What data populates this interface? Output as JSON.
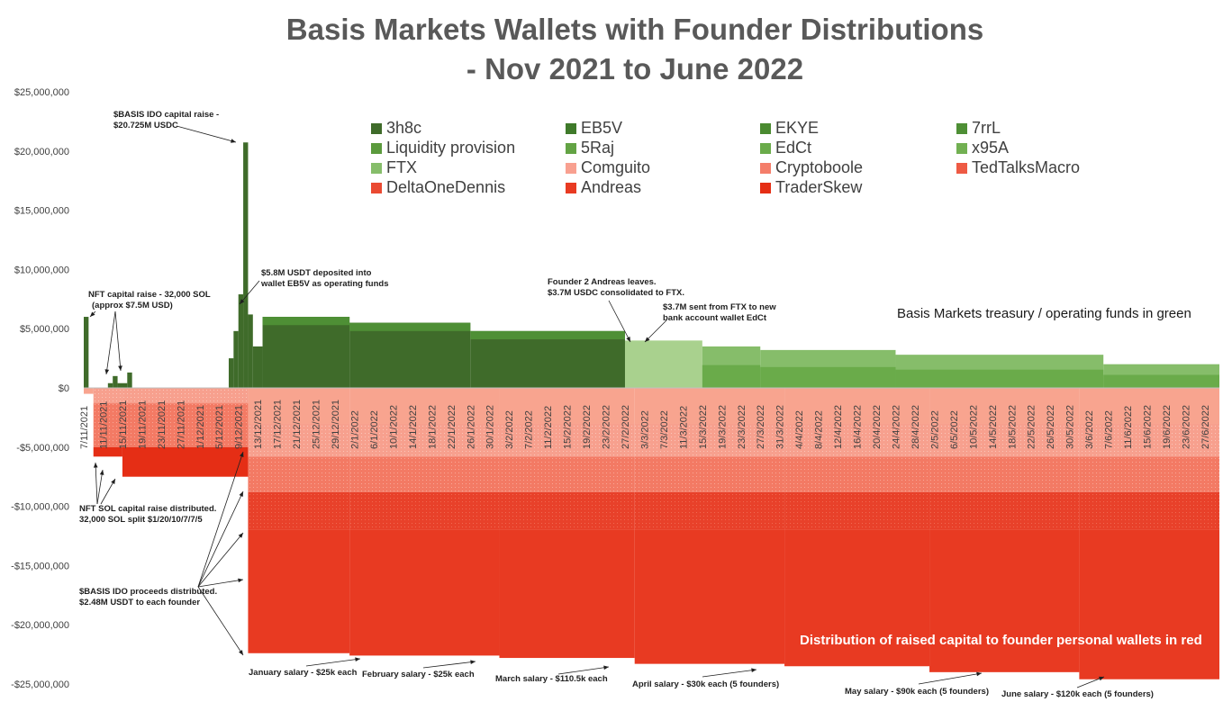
{
  "chart_data": {
    "type": "area",
    "title": "Basis Markets Wallets with Founder Distributions",
    "subtitle": "- Nov 2021 to June 2022",
    "xlabel": "",
    "ylabel": "",
    "ylim": [
      -25000000,
      25000000
    ],
    "y_ticks": [
      "$25,000,000",
      "$20,000,000",
      "$15,000,000",
      "$10,000,000",
      "$5,000,000",
      "$0",
      "-$5,000,000",
      "-$10,000,000",
      "-$15,000,000",
      "-$20,000,000",
      "-$25,000,000"
    ],
    "x_ticks": [
      "7/11/2021",
      "11/11/2021",
      "15/11/2021",
      "19/11/2021",
      "23/11/2021",
      "27/11/2021",
      "1/12/2021",
      "5/12/2021",
      "9/12/2021",
      "13/12/2021",
      "17/12/2021",
      "21/12/2021",
      "25/12/2021",
      "29/12/2021",
      "2/1/2022",
      "6/1/2022",
      "10/1/2022",
      "14/1/2022",
      "18/1/2022",
      "22/1/2022",
      "26/1/2022",
      "30/1/2022",
      "3/2/2022",
      "7/2/2022",
      "11/2/2022",
      "15/2/2022",
      "19/2/2022",
      "23/2/2022",
      "27/2/2022",
      "3/3/2022",
      "7/3/2022",
      "11/3/2022",
      "15/3/2022",
      "19/3/2022",
      "23/3/2022",
      "27/3/2022",
      "31/3/2022",
      "4/4/2022",
      "8/4/2022",
      "12/4/2022",
      "16/4/2022",
      "20/4/2022",
      "24/4/2022",
      "28/4/2022",
      "2/5/2022",
      "6/5/2022",
      "10/5/2022",
      "14/5/2022",
      "18/5/2022",
      "22/5/2022",
      "26/5/2022",
      "30/5/2022",
      "3/6/2022",
      "7/6/2022",
      "11/6/2022",
      "15/6/2022",
      "19/6/2022",
      "23/6/2022",
      "27/6/2022"
    ],
    "grid": false,
    "legend_placement": "top-right",
    "series": [
      {
        "name": "3h8c",
        "color": "#3f6b2a"
      },
      {
        "name": "EB5V",
        "color": "#3f7a2a"
      },
      {
        "name": "EKYE",
        "color": "#4a8a30"
      },
      {
        "name": "7rrL",
        "color": "#4e8f35"
      },
      {
        "name": "Liquidity provision",
        "color": "#5b9a3d"
      },
      {
        "name": "5Raj",
        "color": "#63a344"
      },
      {
        "name": "EdCt",
        "color": "#6aab4a"
      },
      {
        "name": "x95A",
        "color": "#72b052"
      },
      {
        "name": "FTX",
        "color": "#86bd6a"
      },
      {
        "name": "Comguito",
        "color": "#f8a090"
      },
      {
        "name": "Cryptoboole",
        "color": "#f47e6a"
      },
      {
        "name": "TedTalksMacro",
        "color": "#ee5a44"
      },
      {
        "name": "DeltaOneDennis",
        "color": "#ea4a32"
      },
      {
        "name": "Andreas",
        "color": "#e83a22"
      },
      {
        "name": "TraderSkew",
        "color": "#e52e15"
      }
    ],
    "positive_total": [
      {
        "x": "7/11/2021",
        "y": 6000000
      },
      {
        "x": "8/11/2021",
        "y": 0
      },
      {
        "x": "12/11/2021",
        "y": 400000
      },
      {
        "x": "13/11/2021",
        "y": 1000000
      },
      {
        "x": "14/11/2021",
        "y": 400000
      },
      {
        "x": "16/11/2021",
        "y": 1300000
      },
      {
        "x": "17/11/2021",
        "y": 0
      },
      {
        "x": "7/12/2021",
        "y": 2500000
      },
      {
        "x": "8/12/2021",
        "y": 4800000
      },
      {
        "x": "9/12/2021",
        "y": 7900000
      },
      {
        "x": "10/12/2021",
        "y": 20725000
      },
      {
        "x": "11/12/2021",
        "y": 6200000
      },
      {
        "x": "12/12/2021",
        "y": 3500000
      },
      {
        "x": "14/12/2021",
        "y": 6000000
      },
      {
        "x": "1/1/2022",
        "y": 5500000
      },
      {
        "x": "26/1/2022",
        "y": 4800000
      },
      {
        "x": "27/2/2022",
        "y": 4000000
      },
      {
        "x": "15/3/2022",
        "y": 3500000
      },
      {
        "x": "27/3/2022",
        "y": 3200000
      },
      {
        "x": "24/4/2022",
        "y": 2800000
      },
      {
        "x": "6/6/2022",
        "y": 2000000
      },
      {
        "x": "30/6/2022",
        "y": 1900000
      }
    ],
    "negative_total": [
      {
        "x": "9/11/2021",
        "y": -5800000
      },
      {
        "x": "15/11/2021",
        "y": -7500000
      },
      {
        "x": "11/12/2021",
        "y": -22400000
      },
      {
        "x": "1/1/2022",
        "y": -22600000
      },
      {
        "x": "1/2/2022",
        "y": -22800000
      },
      {
        "x": "1/3/2022",
        "y": -23300000
      },
      {
        "x": "1/4/2022",
        "y": -23500000
      },
      {
        "x": "1/5/2022",
        "y": -24000000
      },
      {
        "x": "1/6/2022",
        "y": -24600000
      }
    ]
  },
  "annotations": {
    "ido_raise": [
      "$BASIS IDO capital raise -",
      "$20.725M USDC"
    ],
    "nft_raise": [
      "NFT capital raise - 32,000 SOL",
      "(approx $7.5M USD)"
    ],
    "eb5v_deposit": [
      "$5.8M USDT deposited into",
      "wallet EB5V as operating funds"
    ],
    "andreas_leaves": [
      "Founder 2 Andreas leaves.",
      "$3.7M USDC consolidated to FTX."
    ],
    "ftx_to_bank": [
      "$3.7M sent from FTX to new",
      "bank account wallet EdCt"
    ],
    "nft_distributed": [
      "NFT SOL capital raise distributed.",
      "32,000 SOL split $1/20/10/7/7/5"
    ],
    "ido_distributed": [
      "$BASIS IDO proceeds distributed.",
      "$2.48M USDT to each founder"
    ],
    "jan_salary": "January salary - $25k each",
    "feb_salary": "February salary - $25k each",
    "mar_salary": "March salary - $110.5k each",
    "apr_salary": "April salary - $30k each (5 founders)",
    "may_salary": "May salary - $90k each (5 founders)",
    "jun_salary": "June salary - $120k each (5 founders)"
  },
  "labels": {
    "treasury": "Basis Markets treasury / operating funds in green",
    "distribution": "Distribution of raised capital to founder personal wallets in red"
  }
}
